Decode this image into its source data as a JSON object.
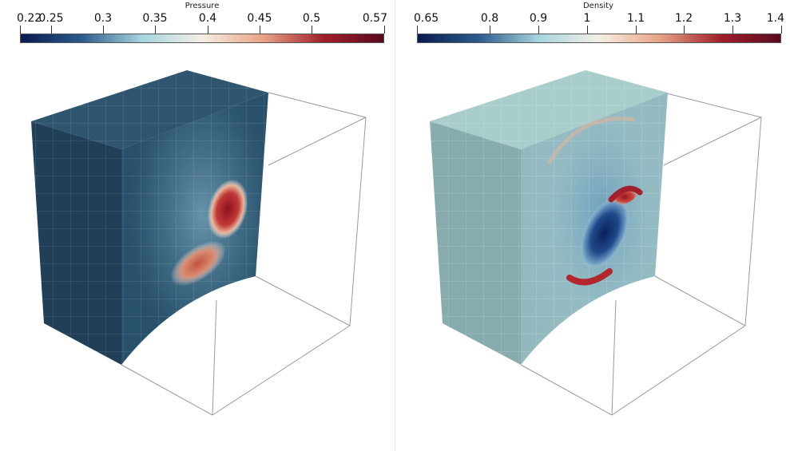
{
  "colorbars": {
    "pressure": {
      "title": "Pressure",
      "ticks": [
        "0.22",
        "0.25",
        "0.3",
        "0.35",
        "0.4",
        "0.45",
        "0.5",
        "0.57"
      ],
      "min": 0.22,
      "max": 0.57,
      "colors": [
        "#0b1a4f",
        "#2b5a8c",
        "#a6d4df",
        "#f5efe4",
        "#e8a487",
        "#a1202b",
        "#5a0a1e"
      ]
    },
    "density": {
      "title": "Density",
      "ticks": [
        "0.65",
        "0.8",
        "0.9",
        "1",
        "1.1",
        "1.2",
        "1.3",
        "1.4"
      ],
      "min": 0.65,
      "max": 1.4,
      "colors": [
        "#0b1a4f",
        "#2b5a8c",
        "#a6d4df",
        "#f5efe4",
        "#e8a487",
        "#a1202b",
        "#5a0a1e"
      ]
    }
  },
  "views": {
    "left": {
      "field": "pressure",
      "face_color": "#24455e",
      "top_color": "#345c78",
      "blob_color": "#b32630"
    },
    "right": {
      "field": "density",
      "face_color": "#8fb6bc",
      "top_color": "#a9cfcf",
      "blob_color": "#16336e"
    }
  }
}
